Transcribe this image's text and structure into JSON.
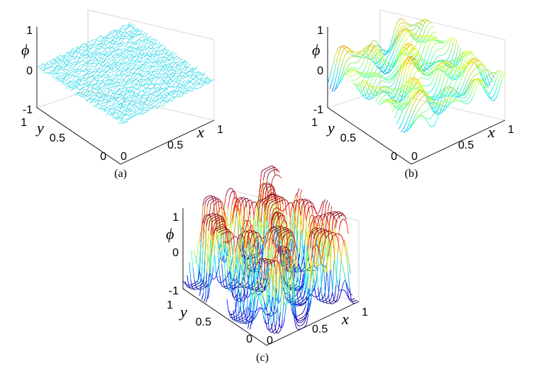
{
  "chart_data": [
    {
      "type": "surface",
      "panel_label": "(a)",
      "xlabel": "x",
      "ylabel": "y",
      "zlabel": "ϕ",
      "xlim": [
        0,
        1
      ],
      "ylim": [
        0,
        1
      ],
      "zlim": [
        -1,
        1
      ],
      "x_ticks": [
        "0",
        "0.5",
        "1"
      ],
      "y_ticks": [
        "0",
        "0.5",
        "1"
      ],
      "z_ticks": [
        "-1",
        "0",
        "1"
      ],
      "amplitude": 0.05,
      "colormap": "jet"
    },
    {
      "type": "surface",
      "panel_label": "(b)",
      "xlabel": "x",
      "ylabel": "y",
      "zlabel": "ϕ",
      "xlim": [
        0,
        1
      ],
      "ylim": [
        0,
        1
      ],
      "zlim": [
        -1,
        1
      ],
      "x_ticks": [
        "0",
        "0.5",
        "1"
      ],
      "y_ticks": [
        "0",
        "0.5",
        "1"
      ],
      "z_ticks": [
        "-1",
        "0",
        "1"
      ],
      "amplitude": 0.45,
      "colormap": "jet"
    },
    {
      "type": "surface",
      "panel_label": "(c)",
      "xlabel": "x",
      "ylabel": "y",
      "zlabel": "ϕ",
      "xlim": [
        0,
        1
      ],
      "ylim": [
        0,
        1
      ],
      "zlim": [
        -1,
        1
      ],
      "x_ticks": [
        "0",
        "0.5",
        "1"
      ],
      "y_ticks": [
        "0",
        "0.5",
        "1"
      ],
      "z_ticks": [
        "-1",
        "0",
        "1"
      ],
      "amplitude": 1.0,
      "colormap": "jet"
    }
  ]
}
